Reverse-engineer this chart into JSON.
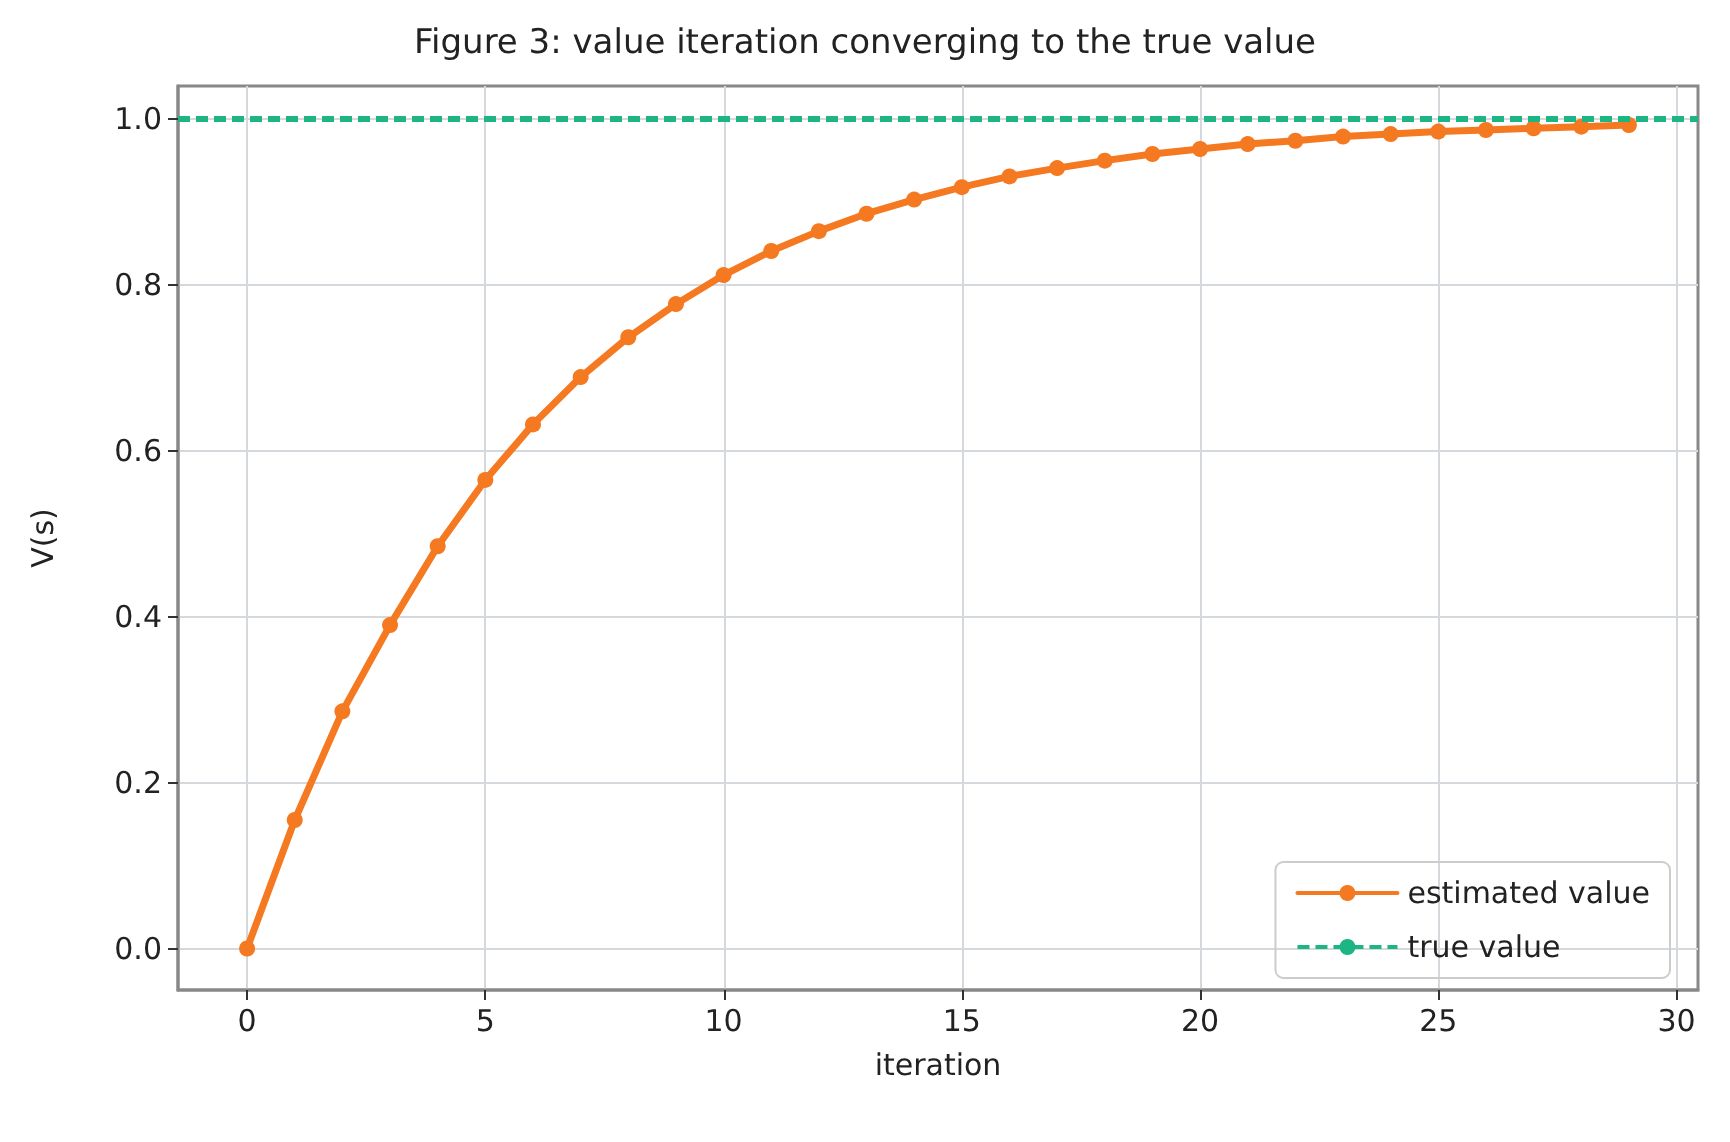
{
  "chart_data": {
    "type": "line",
    "title": "Figure 3: value iteration converging to the true value",
    "xlabel": "iteration",
    "ylabel": "V(s)",
    "x": [
      0,
      1,
      2,
      3,
      4,
      5,
      6,
      7,
      8,
      9,
      10,
      11,
      12,
      13,
      14,
      15,
      16,
      17,
      18,
      19,
      20,
      21,
      22,
      23,
      24,
      25,
      26,
      27,
      28,
      29
    ],
    "series": [
      {
        "name": "estimated value",
        "color": "#f47920",
        "values": [
          0,
          0.155,
          0.286,
          0.39,
          0.485,
          0.565,
          0.632,
          0.689,
          0.737,
          0.777,
          0.812,
          0.841,
          0.865,
          0.886,
          0.903,
          0.918,
          0.931,
          0.941,
          0.95,
          0.958,
          0.964,
          0.97,
          0.974,
          0.979,
          0.982,
          0.985,
          0.987,
          0.989,
          0.991,
          0.993
        ]
      }
    ],
    "ref_lines": [
      {
        "axis": "y",
        "value": 1,
        "label": "true value",
        "color": "#1db584",
        "line_style": "dashed"
      }
    ],
    "xlim": [
      -1.45,
      30.45
    ],
    "xticks": [
      0,
      5,
      10,
      15,
      20,
      25,
      30
    ],
    "ylim": [
      -0.05,
      1.04
    ],
    "yticks": [
      {
        "value": 0,
        "label": "0.0"
      },
      {
        "value": 0.2,
        "label": "0.2"
      },
      {
        "value": 0.4,
        "label": "0.4"
      },
      {
        "value": 0.6,
        "label": "0.6"
      },
      {
        "value": 0.8,
        "label": "0.8"
      },
      {
        "value": 1,
        "label": "1.0"
      }
    ],
    "grid": true,
    "legend": "bottom right",
    "marker": "circle",
    "line_style": "solid"
  }
}
